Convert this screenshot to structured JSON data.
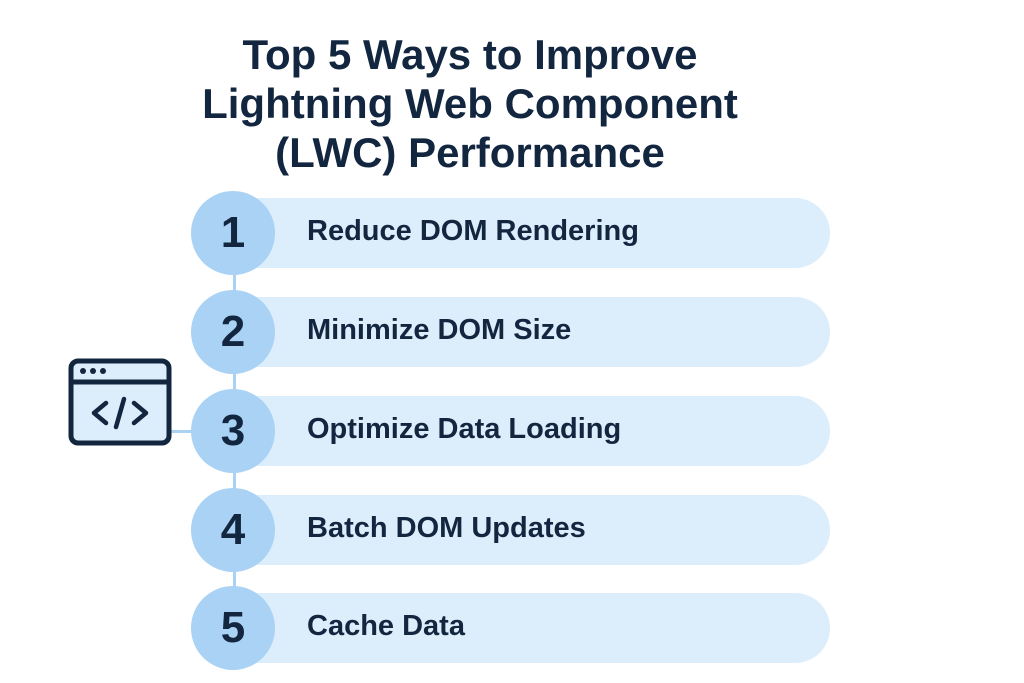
{
  "title": [
    "Top 5 Ways to Improve",
    "Lightning Web Component",
    "(LWC) Performance"
  ],
  "steps": [
    {
      "number": "1",
      "label": "Reduce DOM Rendering"
    },
    {
      "number": "2",
      "label": "Minimize DOM Size"
    },
    {
      "number": "3",
      "label": "Optimize Data Loading"
    },
    {
      "number": "4",
      "label": "Batch DOM Updates"
    },
    {
      "number": "5",
      "label": "Cache Data"
    }
  ],
  "icon": "code-window-icon",
  "colors": {
    "text": "#13263f",
    "circle": "#a9d2f5",
    "bar": "#dcedfb"
  }
}
